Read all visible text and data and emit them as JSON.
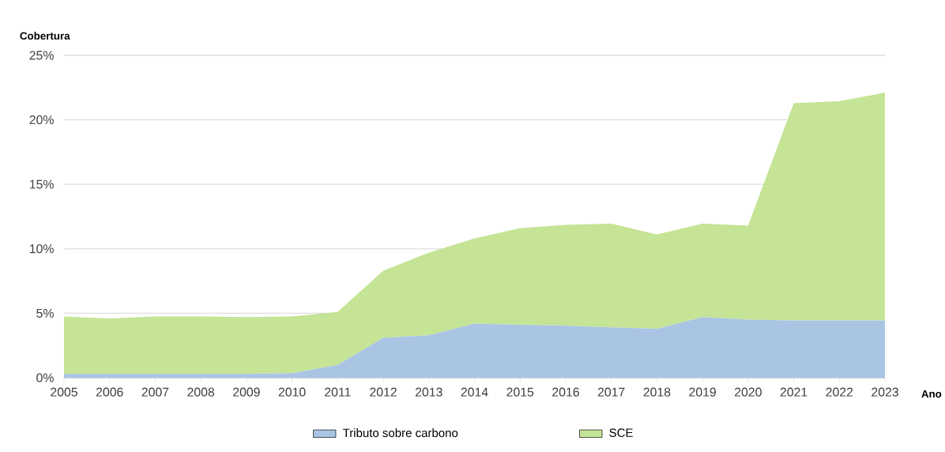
{
  "chart_data": {
    "type": "area",
    "stacked": true,
    "ylabel": "Cobertura",
    "xlabel": "Ano",
    "x": [
      2005,
      2006,
      2007,
      2008,
      2009,
      2010,
      2011,
      2012,
      2013,
      2014,
      2015,
      2016,
      2017,
      2018,
      2019,
      2020,
      2021,
      2022,
      2023
    ],
    "series": [
      {
        "name": "Tributo sobre carbono",
        "color": "#a9c5e3",
        "values": [
          0.3,
          0.3,
          0.3,
          0.3,
          0.3,
          0.35,
          1.0,
          3.1,
          3.3,
          4.2,
          4.1,
          4.05,
          3.9,
          3.8,
          4.7,
          4.5,
          4.45,
          4.45,
          4.45
        ]
      },
      {
        "name": "SCE",
        "color": "#c5e496",
        "values": [
          4.45,
          4.3,
          4.45,
          4.45,
          4.4,
          4.4,
          4.1,
          5.2,
          6.4,
          6.6,
          7.5,
          7.8,
          8.05,
          7.3,
          7.25,
          7.3,
          16.85,
          17.0,
          17.65
        ]
      }
    ],
    "xlim": [
      2005,
      2023
    ],
    "xticks": [
      2005,
      2006,
      2007,
      2008,
      2009,
      2010,
      2011,
      2012,
      2013,
      2014,
      2015,
      2016,
      2017,
      2018,
      2019,
      2020,
      2021,
      2022,
      2023
    ],
    "ylim": [
      0,
      25
    ],
    "yticks": [
      {
        "value": 0,
        "label": "0%"
      },
      {
        "value": 5,
        "label": "5%"
      },
      {
        "value": 10,
        "label": "10%"
      },
      {
        "value": 15,
        "label": "15%"
      },
      {
        "value": 20,
        "label": "20%"
      },
      {
        "value": 25,
        "label": "25%"
      }
    ],
    "grid": "y",
    "legend": "bottom"
  }
}
